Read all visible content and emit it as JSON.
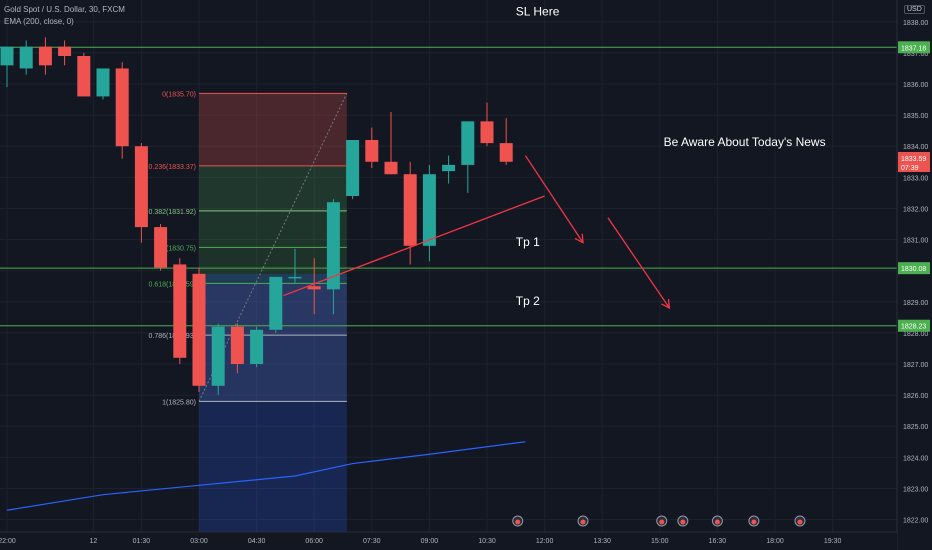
{
  "header": {
    "symbol": "Gold Spot / U.S. Dollar, 30, FXCM",
    "indicator": "EMA (200, close, 0)",
    "currency": "USD"
  },
  "colors": {
    "background": "#131722",
    "bull": "#26a69a",
    "bear": "#ef5350",
    "ema": "#2962ff",
    "level_line": "#4caf50",
    "annotation": "#f23645",
    "text": "#d1d4dc"
  },
  "chart_data": {
    "type": "candlestick",
    "y_axis": {
      "range": [
        1821.6,
        1838.7
      ],
      "ticks": [
        "1838.00",
        "1837.00",
        "1836.00",
        "1835.00",
        "1834.00",
        "1833.00",
        "1832.00",
        "1831.00",
        "1830.00",
        "1829.00",
        "1828.00",
        "1827.00",
        "1826.00",
        "1825.00",
        "1824.00",
        "1823.00",
        "1822.00"
      ]
    },
    "x_axis": {
      "range": [
        0,
        47
      ],
      "ticks": [
        {
          "x": 0,
          "label": "22:00"
        },
        {
          "x": 4.5,
          "label": "12"
        },
        {
          "x": 7,
          "label": "01:30"
        },
        {
          "x": 10,
          "label": "03:00"
        },
        {
          "x": 13,
          "label": "04:30"
        },
        {
          "x": 16,
          "label": "06:00"
        },
        {
          "x": 19,
          "label": "07:30"
        },
        {
          "x": 22,
          "label": "09:00"
        },
        {
          "x": 25,
          "label": "10:30"
        },
        {
          "x": 28,
          "label": "12:00"
        },
        {
          "x": 31,
          "label": "13:30"
        },
        {
          "x": 34,
          "label": "15:00"
        },
        {
          "x": 37,
          "label": "16:30"
        },
        {
          "x": 40,
          "label": "18:00"
        },
        {
          "x": 43,
          "label": "19:30"
        }
      ]
    },
    "candles": [
      {
        "x": 0,
        "o": 1836.6,
        "h": 1837.2,
        "l": 1835.9,
        "c": 1837.2
      },
      {
        "x": 1,
        "o": 1836.5,
        "h": 1837.4,
        "l": 1836.3,
        "c": 1837.2
      },
      {
        "x": 2,
        "o": 1837.2,
        "h": 1837.5,
        "l": 1836.3,
        "c": 1836.6
      },
      {
        "x": 3,
        "o": 1837.2,
        "h": 1837.4,
        "l": 1836.6,
        "c": 1836.9
      },
      {
        "x": 4,
        "o": 1836.9,
        "h": 1837.0,
        "l": 1835.6,
        "c": 1835.6
      },
      {
        "x": 5,
        "o": 1835.6,
        "h": 1836.5,
        "l": 1835.5,
        "c": 1836.5
      },
      {
        "x": 6,
        "o": 1836.5,
        "h": 1836.7,
        "l": 1833.6,
        "c": 1834.0
      },
      {
        "x": 7,
        "o": 1834.0,
        "h": 1834.1,
        "l": 1830.9,
        "c": 1831.4
      },
      {
        "x": 8,
        "o": 1831.4,
        "h": 1831.5,
        "l": 1830.0,
        "c": 1830.1
      },
      {
        "x": 9,
        "o": 1830.2,
        "h": 1830.4,
        "l": 1827.0,
        "c": 1827.2
      },
      {
        "x": 10,
        "o": 1829.9,
        "h": 1830.1,
        "l": 1826.1,
        "c": 1826.3
      },
      {
        "x": 11,
        "o": 1826.3,
        "h": 1828.3,
        "l": 1826.0,
        "c": 1828.2
      },
      {
        "x": 12,
        "o": 1828.2,
        "h": 1828.3,
        "l": 1826.7,
        "c": 1827.0
      },
      {
        "x": 13,
        "o": 1827.0,
        "h": 1828.2,
        "l": 1826.9,
        "c": 1828.1
      },
      {
        "x": 14,
        "o": 1828.1,
        "h": 1829.8,
        "l": 1828.0,
        "c": 1829.8
      },
      {
        "x": 15,
        "o": 1829.8,
        "h": 1830.7,
        "l": 1829.6,
        "c": 1829.8
      },
      {
        "x": 16,
        "o": 1829.5,
        "h": 1830.4,
        "l": 1828.6,
        "c": 1829.4
      },
      {
        "x": 17,
        "o": 1829.4,
        "h": 1832.3,
        "l": 1828.6,
        "c": 1832.2
      },
      {
        "x": 18,
        "o": 1832.4,
        "h": 1834.2,
        "l": 1832.3,
        "c": 1834.2
      },
      {
        "x": 19,
        "o": 1834.2,
        "h": 1834.6,
        "l": 1833.3,
        "c": 1833.5
      },
      {
        "x": 20,
        "o": 1833.5,
        "h": 1835.1,
        "l": 1833.1,
        "c": 1833.1
      },
      {
        "x": 21,
        "o": 1833.1,
        "h": 1833.5,
        "l": 1830.2,
        "c": 1830.8
      },
      {
        "x": 22,
        "o": 1830.8,
        "h": 1833.4,
        "l": 1830.3,
        "c": 1833.1
      },
      {
        "x": 23,
        "o": 1833.2,
        "h": 1833.7,
        "l": 1832.8,
        "c": 1833.4
      },
      {
        "x": 24,
        "o": 1833.4,
        "h": 1834.8,
        "l": 1832.5,
        "c": 1834.8
      },
      {
        "x": 25,
        "o": 1834.8,
        "h": 1835.4,
        "l": 1834.0,
        "c": 1834.1
      },
      {
        "x": 26,
        "o": 1834.1,
        "h": 1834.9,
        "l": 1833.4,
        "c": 1833.5
      }
    ],
    "ema": [
      {
        "x": 0,
        "y": 1822.3
      },
      {
        "x": 5,
        "y": 1822.8
      },
      {
        "x": 10,
        "y": 1823.1
      },
      {
        "x": 15,
        "y": 1823.4
      },
      {
        "x": 18,
        "y": 1823.8
      },
      {
        "x": 22,
        "y": 1824.1
      },
      {
        "x": 27,
        "y": 1824.5
      }
    ],
    "fibonacci": {
      "x0": 10,
      "x1": 17.7,
      "levels": [
        {
          "label": "0(1835.70)",
          "value": 1835.7,
          "color": "#ef5350"
        },
        {
          "label": "0.236(1833.37)",
          "value": 1833.37,
          "color": "#ef5350"
        },
        {
          "label": "0.382(1831.92)",
          "value": 1831.92,
          "color": "#81c784"
        },
        {
          "label": "0.5(1830.75)",
          "value": 1830.75,
          "color": "#4caf50"
        },
        {
          "label": "0.618(1829.59)",
          "value": 1829.59,
          "color": "#4caf50"
        },
        {
          "label": "0.786(1827.93)",
          "value": 1827.93,
          "color": "#b2b5be"
        },
        {
          "label": "1(1825.80)",
          "value": 1825.8,
          "color": "#b2b5be"
        }
      ]
    },
    "horizontal_levels": [
      {
        "value": 1837.18,
        "label": "1837.18"
      },
      {
        "value": 1830.08,
        "label": "1830.08"
      },
      {
        "value": 1828.23,
        "label": "1828.23"
      }
    ],
    "last_price": {
      "value": 1833.59,
      "label": "1833.59",
      "countdown": "07:39"
    },
    "annotations": [
      {
        "text": "SL Here",
        "x": 26.5,
        "y": 1838.2
      },
      {
        "text": "Be Aware About Today's News",
        "x": 34.2,
        "y": 1834.0
      },
      {
        "text": "Tp 1",
        "x": 26.5,
        "y": 1830.8
      },
      {
        "text": "Tp 2",
        "x": 26.5,
        "y": 1828.9
      }
    ],
    "trend_line": {
      "x0": 14.4,
      "y0": 1829.2,
      "x1": 28,
      "y1": 1832.4
    },
    "arrows": [
      {
        "x0": 27,
        "y0": 1833.7,
        "x1": 30,
        "y1": 1830.9
      },
      {
        "x0": 31.3,
        "y0": 1831.7,
        "x1": 34.5,
        "y1": 1828.8
      }
    ],
    "event_markers": [
      26.6,
      30,
      34.1,
      35.2,
      37,
      38.9,
      41.3
    ]
  }
}
